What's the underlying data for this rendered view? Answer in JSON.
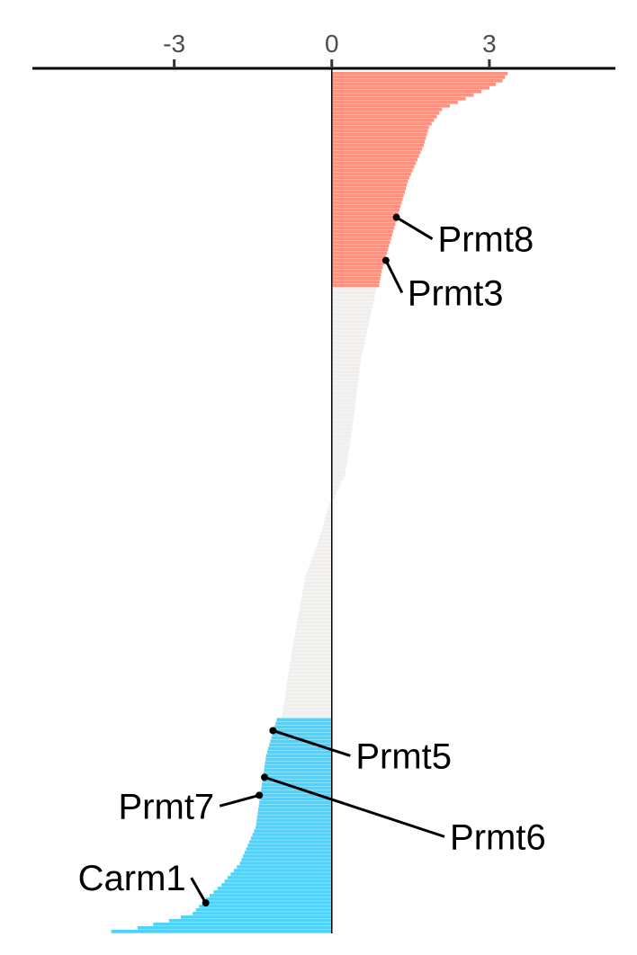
{
  "chart_data": {
    "type": "bar",
    "orientation": "horizontal",
    "title": "",
    "xlabel": "",
    "ylabel": "",
    "xlim": [
      -5.7,
      5.4
    ],
    "x_axis_position": "top",
    "grid": false,
    "legend": "none",
    "x_ticks": [
      {
        "value": -3,
        "label": "-3"
      },
      {
        "value": 0,
        "label": "0"
      },
      {
        "value": 3,
        "label": "3"
      }
    ],
    "colors": {
      "up": "#ff9180",
      "neutral": "#f0efed",
      "down": "#4fd2fc",
      "axis": "#000000",
      "tick_text": "#4d4d4d"
    },
    "n_bars": 240,
    "threshold_counts": {
      "up": 60,
      "down": 60
    },
    "profile": [
      {
        "i": 0,
        "v": 3.35
      },
      {
        "i": 2,
        "v": 3.25
      },
      {
        "i": 4,
        "v": 3.0
      },
      {
        "i": 6,
        "v": 2.7
      },
      {
        "i": 10,
        "v": 2.1
      },
      {
        "i": 15,
        "v": 1.85
      },
      {
        "i": 20,
        "v": 1.75
      },
      {
        "i": 25,
        "v": 1.6
      },
      {
        "i": 30,
        "v": 1.45
      },
      {
        "i": 35,
        "v": 1.35
      },
      {
        "i": 40,
        "v": 1.25
      },
      {
        "i": 45,
        "v": 1.15
      },
      {
        "i": 50,
        "v": 1.05
      },
      {
        "i": 55,
        "v": 0.95
      },
      {
        "i": 59,
        "v": 0.9
      },
      {
        "i": 60,
        "v": 0.85
      },
      {
        "i": 80,
        "v": 0.55
      },
      {
        "i": 100,
        "v": 0.38
      },
      {
        "i": 112,
        "v": 0.25
      },
      {
        "i": 118,
        "v": 0.05
      },
      {
        "i": 120,
        "v": -0.05
      },
      {
        "i": 130,
        "v": -0.25
      },
      {
        "i": 140,
        "v": -0.5
      },
      {
        "i": 160,
        "v": -0.75
      },
      {
        "i": 179,
        "v": -0.95
      },
      {
        "i": 180,
        "v": -1.05
      },
      {
        "i": 190,
        "v": -1.25
      },
      {
        "i": 200,
        "v": -1.35
      },
      {
        "i": 210,
        "v": -1.45
      },
      {
        "i": 220,
        "v": -1.75
      },
      {
        "i": 226,
        "v": -2.1
      },
      {
        "i": 230,
        "v": -2.4
      },
      {
        "i": 234,
        "v": -2.65
      },
      {
        "i": 236,
        "v": -3.1
      },
      {
        "i": 238,
        "v": -3.7
      },
      {
        "i": 239,
        "v": -4.2
      }
    ],
    "annotations": [
      {
        "label": "Prmt8",
        "value": 1.23,
        "bar_index": 40,
        "label_side": "right"
      },
      {
        "label": "Prmt3",
        "value": 1.03,
        "bar_index": 52,
        "label_side": "right"
      },
      {
        "label": "Prmt5",
        "value": -1.12,
        "bar_index": 183,
        "label_side": "right"
      },
      {
        "label": "Prmt6",
        "value": -1.28,
        "bar_index": 196,
        "label_side": "right"
      },
      {
        "label": "Prmt7",
        "value": -1.38,
        "bar_index": 201,
        "label_side": "left"
      },
      {
        "label": "Carm1",
        "value": -2.4,
        "bar_index": 231,
        "label_side": "left"
      }
    ]
  }
}
